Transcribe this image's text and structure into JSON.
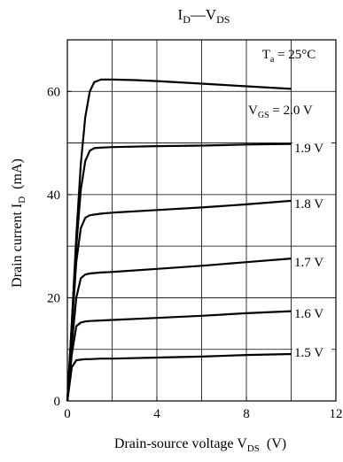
{
  "chart_data": {
    "type": "line",
    "title": {
      "main": "I",
      "main_sub": "D",
      "sep": "—",
      "second": "V",
      "second_sub": "DS"
    },
    "xlabel": {
      "text": "Drain-source voltage  V",
      "sub": "DS",
      "unit": "(V)"
    },
    "ylabel": {
      "text": "Drain current  I",
      "sub": "D",
      "unit": "(mA)"
    },
    "xlim": [
      0,
      12
    ],
    "ylim": [
      0,
      70
    ],
    "xticks": [
      0,
      4,
      8,
      12
    ],
    "xtick_labels": [
      "0",
      "4",
      "8",
      "12"
    ],
    "yticks": [
      0,
      20,
      40,
      60
    ],
    "ytick_labels": [
      "0",
      "20",
      "40",
      "60"
    ],
    "grid": true,
    "condition": {
      "text": "T",
      "sub": "a",
      "rest": " = 25°C"
    },
    "vgs_prefix": {
      "text": "V",
      "sub": "GS",
      "rest": " = "
    },
    "series": [
      {
        "name": "2.0 V",
        "x": [
          0,
          0.2,
          0.4,
          0.6,
          0.8,
          1.0,
          1.2,
          1.5,
          2.0,
          3.0,
          4.0,
          6.0,
          8.0,
          10.0
        ],
        "y": [
          0,
          15,
          32,
          46,
          55,
          60,
          61.8,
          62.3,
          62.3,
          62.2,
          62.0,
          61.5,
          61.0,
          60.5
        ]
      },
      {
        "name": "1.9 V",
        "x": [
          0,
          0.2,
          0.4,
          0.6,
          0.8,
          1.0,
          1.2,
          1.5,
          2.0,
          4.0,
          6.0,
          8.0,
          10.0
        ],
        "y": [
          0,
          15,
          30,
          41,
          46.5,
          48.5,
          49.0,
          49.1,
          49.2,
          49.4,
          49.5,
          49.7,
          49.8
        ]
      },
      {
        "name": "1.8 V",
        "x": [
          0,
          0.2,
          0.4,
          0.6,
          0.8,
          1.0,
          1.5,
          2.0,
          4.0,
          6.0,
          8.0,
          10.0
        ],
        "y": [
          0,
          14,
          27,
          33.5,
          35.5,
          36.0,
          36.3,
          36.5,
          37.0,
          37.5,
          38.1,
          38.8
        ]
      },
      {
        "name": "1.7 V",
        "x": [
          0,
          0.2,
          0.4,
          0.6,
          0.8,
          1.0,
          1.5,
          2.0,
          4.0,
          6.0,
          8.0,
          10.0
        ],
        "y": [
          0,
          11,
          20,
          23.8,
          24.5,
          24.7,
          24.9,
          25.0,
          25.6,
          26.2,
          26.9,
          27.6
        ]
      },
      {
        "name": "1.6 V",
        "x": [
          0,
          0.2,
          0.4,
          0.6,
          0.8,
          1.0,
          1.5,
          2.0,
          4.0,
          6.0,
          8.0,
          10.0
        ],
        "y": [
          0,
          9,
          14.5,
          15.2,
          15.4,
          15.5,
          15.6,
          15.7,
          16.1,
          16.5,
          17.0,
          17.4
        ]
      },
      {
        "name": "1.5 V",
        "x": [
          0,
          0.2,
          0.4,
          0.6,
          0.8,
          1.0,
          1.5,
          2.0,
          4.0,
          6.0,
          8.0,
          10.0
        ],
        "y": [
          0,
          6.5,
          7.9,
          8.0,
          8.1,
          8.1,
          8.2,
          8.2,
          8.4,
          8.6,
          8.9,
          9.1
        ]
      }
    ]
  }
}
